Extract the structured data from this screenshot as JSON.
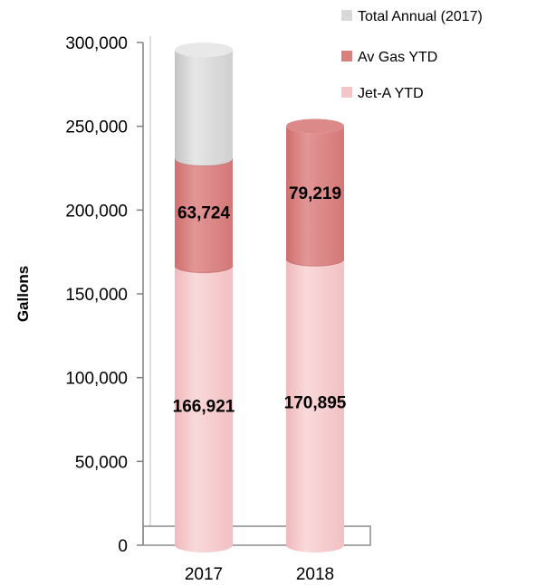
{
  "chart_data": {
    "type": "bar",
    "stacked": true,
    "style": "3d-cylinder",
    "categories": [
      "2017",
      "2018"
    ],
    "series": [
      {
        "name": "Jet-A YTD",
        "values": [
          166921,
          170895
        ],
        "color": "#f4c6c8",
        "labels": [
          "166,921",
          "170,895"
        ]
      },
      {
        "name": "Av Gas YTD",
        "values": [
          63724,
          79219
        ],
        "color": "#d9807f",
        "labels": [
          "63,724",
          "79,219"
        ]
      },
      {
        "name": "Total Annual (2017)",
        "values": [
          65000,
          null
        ],
        "color": "#d9d9d9"
      }
    ],
    "ylabel": "Gallons",
    "ylim": [
      0,
      300000
    ],
    "yticks": [
      "0",
      "50,000",
      "100,000",
      "150,000",
      "200,000",
      "250,000",
      "300,000"
    ],
    "ytick_values": [
      0,
      50000,
      100000,
      150000,
      200000,
      250000,
      300000
    ],
    "legend_order": [
      "Total Annual (2017)",
      "Av Gas YTD",
      "Jet-A YTD"
    ],
    "legend_position": "top-right",
    "grid": false
  }
}
